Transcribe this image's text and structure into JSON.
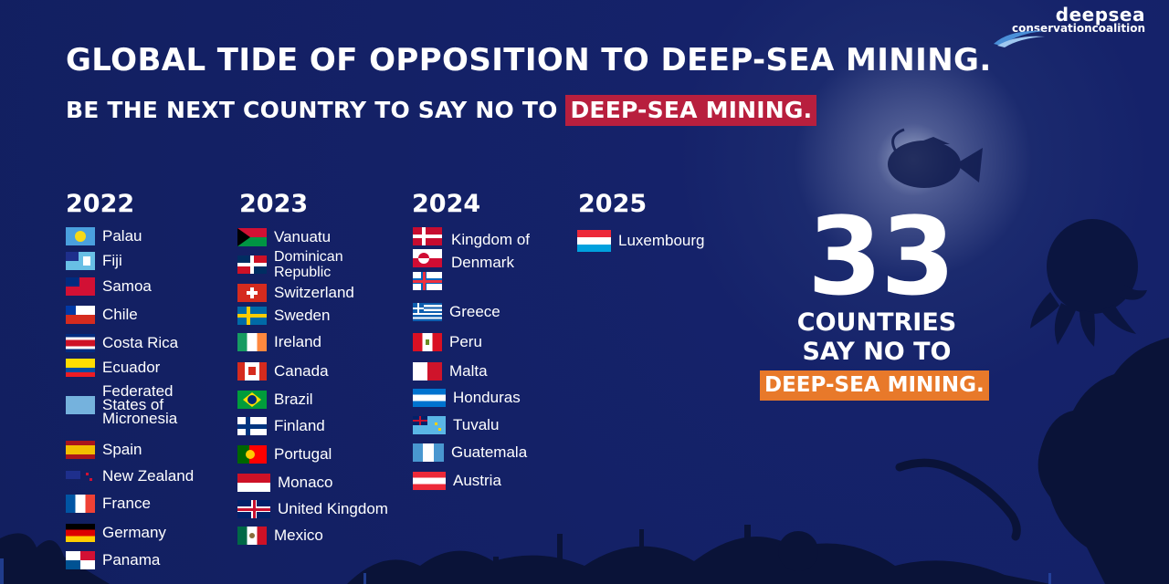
{
  "logo": {
    "top": "deepsea",
    "bottom": "conservationcoalition"
  },
  "headline": "GLOBAL TIDE OF OPPOSITION TO DEEP-SEA MINING.",
  "subhead": {
    "text": "BE THE NEXT COUNTRY TO SAY NO TO ",
    "highlight": "DEEP-SEA MINING."
  },
  "columns": [
    {
      "year": "2022",
      "countries": [
        "Palau",
        "Fiji",
        "Samoa",
        "Chile",
        "Costa Rica",
        "Ecuador",
        "Federated States of Micronesia",
        "Spain",
        "New Zealand",
        "France",
        "Germany",
        "Panama"
      ]
    },
    {
      "year": "2023",
      "countries": [
        "Vanuatu",
        "Dominican Republic",
        "Switzerland",
        "Sweden",
        "Ireland",
        "Canada",
        "Brazil",
        "Finland",
        "Portugal",
        "Monaco",
        "United Kingdom",
        "Mexico"
      ]
    },
    {
      "year": "2024",
      "countries": [
        "Kingdom of Denmark",
        "Greece",
        "Peru",
        "Malta",
        "Honduras",
        "Tuvalu",
        "Guatemala",
        "Austria"
      ]
    },
    {
      "year": "2025",
      "countries": [
        "Luxembourg"
      ]
    }
  ],
  "stat": {
    "number": "33",
    "line1": "COUNTRIES",
    "line2": "SAY NO TO",
    "highlight": "DEEP-SEA MINING."
  },
  "colors": {
    "background": "#15226a",
    "highlight_red": "#b81f3e",
    "highlight_orange": "#e8792a",
    "silhouette": "#0b1540"
  }
}
